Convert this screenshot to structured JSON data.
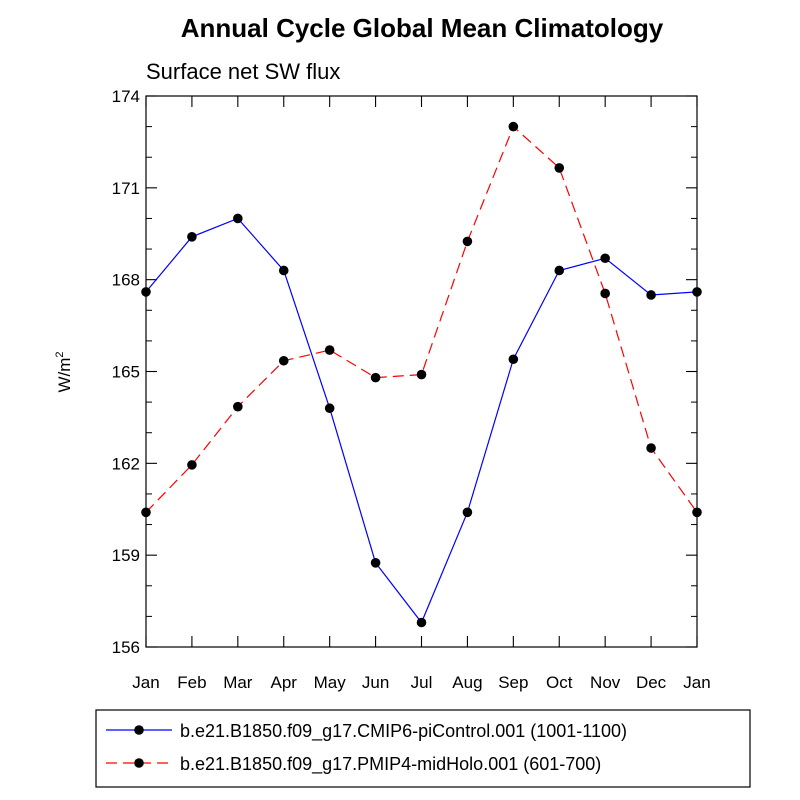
{
  "chart_data": {
    "type": "line",
    "title": "Annual Cycle Global Mean Climatology",
    "subtitle": "Surface net SW flux",
    "xlabel": "",
    "ylabel_base": "W/m",
    "ylabel_exp": "2",
    "categories": [
      "Jan",
      "Feb",
      "Mar",
      "Apr",
      "May",
      "Jun",
      "Jul",
      "Aug",
      "Sep",
      "Oct",
      "Nov",
      "Dec",
      "Jan"
    ],
    "ylim": [
      156,
      174
    ],
    "yticks": [
      156,
      159,
      162,
      165,
      168,
      171,
      174
    ],
    "y_minor_step": 1,
    "grid": false,
    "legend_position": "bottom",
    "series": [
      {
        "name": "b.e21.B1850.f09_g17.CMIP6-piControl.001 (1001-1100)",
        "color": "#0000ff",
        "dash": "solid",
        "values": [
          167.6,
          169.4,
          170.0,
          168.3,
          163.8,
          158.75,
          156.8,
          160.4,
          165.4,
          168.3,
          168.7,
          167.5,
          167.6
        ]
      },
      {
        "name": "b.e21.B1850.f09_g17.PMIP4-midHolo.001 (601-700)",
        "color": "#ff0000",
        "dash": "dashed",
        "values": [
          160.4,
          161.95,
          163.85,
          165.35,
          165.7,
          164.8,
          164.9,
          169.25,
          173.0,
          171.65,
          167.55,
          162.5,
          160.4
        ]
      }
    ]
  }
}
